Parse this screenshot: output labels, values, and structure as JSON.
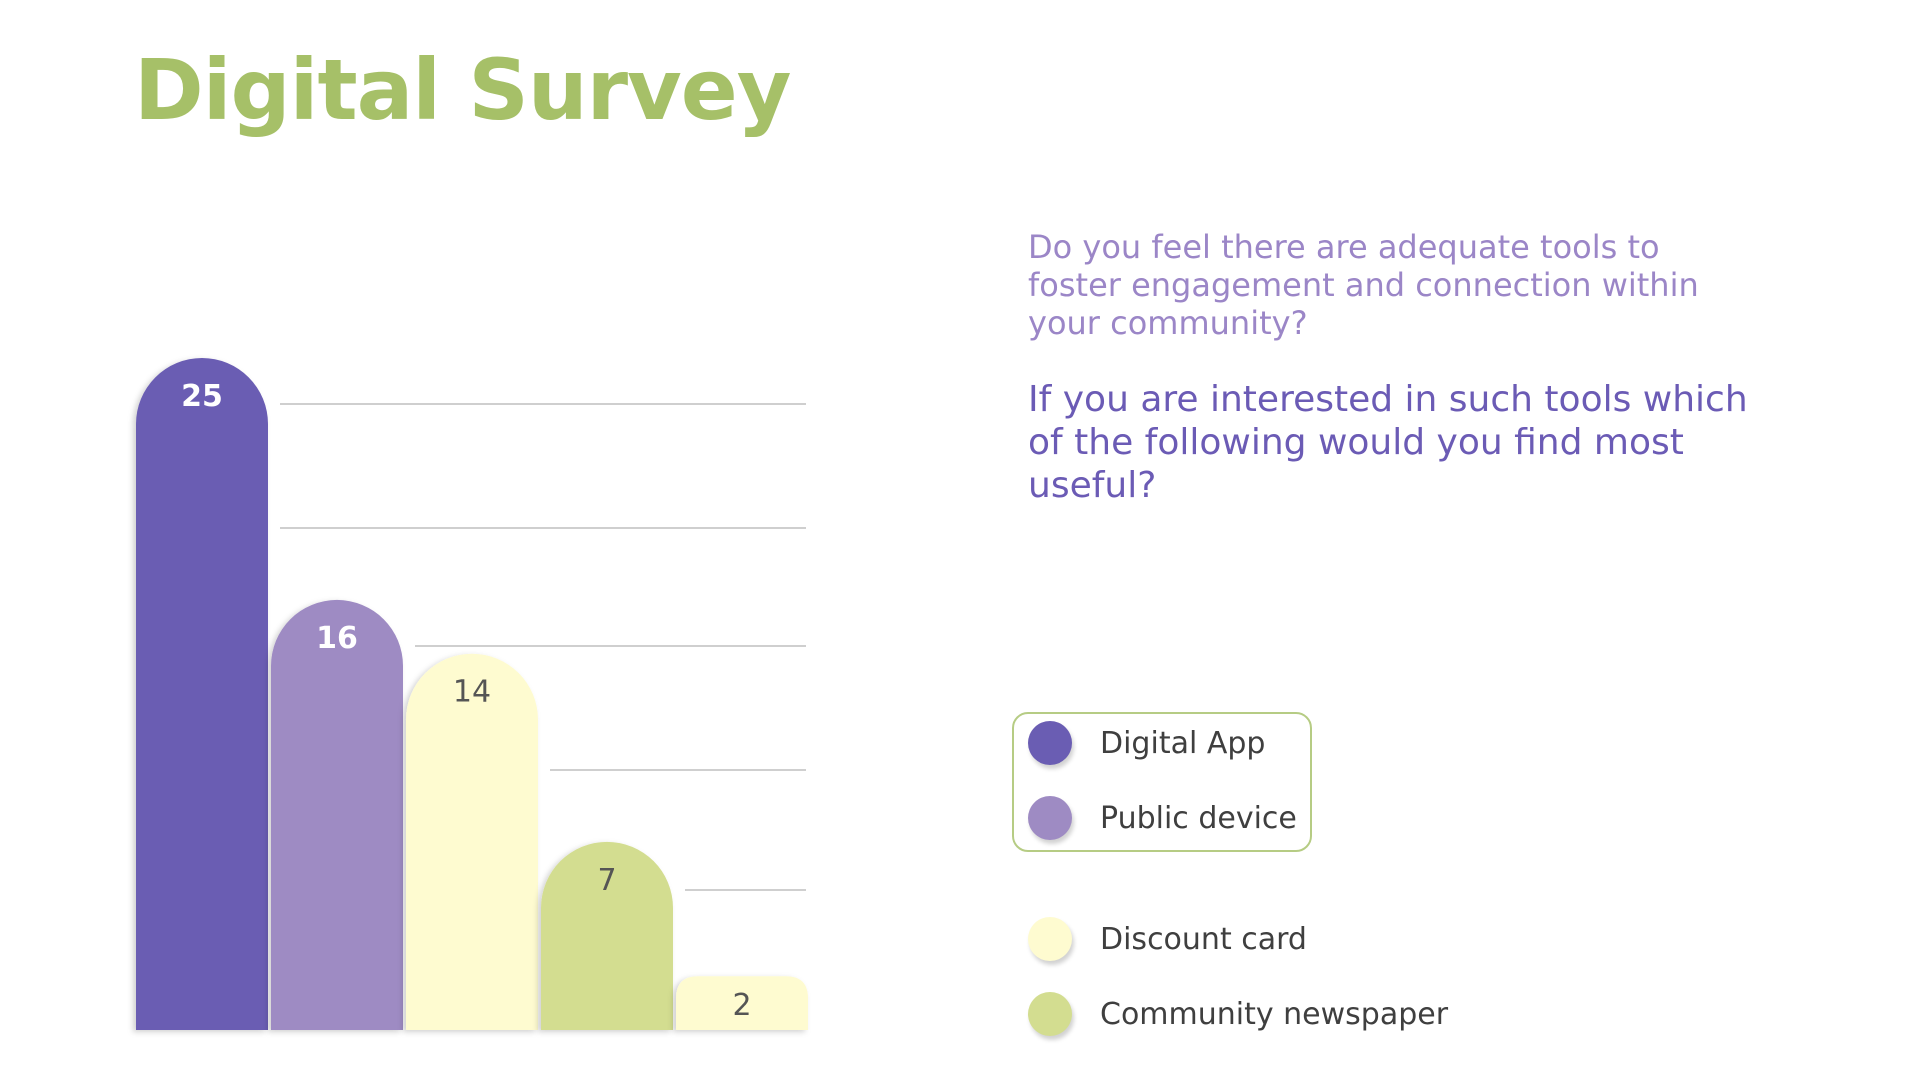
{
  "title": "Digital Survey",
  "question": "Do you feel there are adequate tools to foster engagement and connection within your community?",
  "subquestion": "If you are interested in such tools which of the following would you find most useful?",
  "colors": {
    "title": "#a6c068",
    "digital_app": "#6a5db3",
    "public_device": "#9e8bc3",
    "discount_card": "#fefbd0",
    "community_newspaper": "#d3dd90",
    "legend_border": "#b6cc84",
    "gridline": "#cfcfcf"
  },
  "legend": [
    {
      "label": "Digital App",
      "color": "#6a5db3"
    },
    {
      "label": "Public device",
      "color": "#9e8bc3"
    },
    {
      "label": "Discount card",
      "color": "#fefbd0"
    },
    {
      "label": "Community newspaper",
      "color": "#d3dd90"
    }
  ],
  "chart_data": {
    "type": "bar",
    "title": "",
    "xlabel": "",
    "ylabel": "",
    "categories": [
      "Digital App",
      "Public device",
      "Discount card",
      "Community newspaper",
      "Discount card"
    ],
    "values": [
      25,
      16,
      14,
      7,
      2
    ],
    "value_labels": [
      "25",
      "16",
      "14",
      "7",
      "2"
    ],
    "ylim": [
      0,
      25
    ],
    "grid": true,
    "legend_position": "right"
  }
}
